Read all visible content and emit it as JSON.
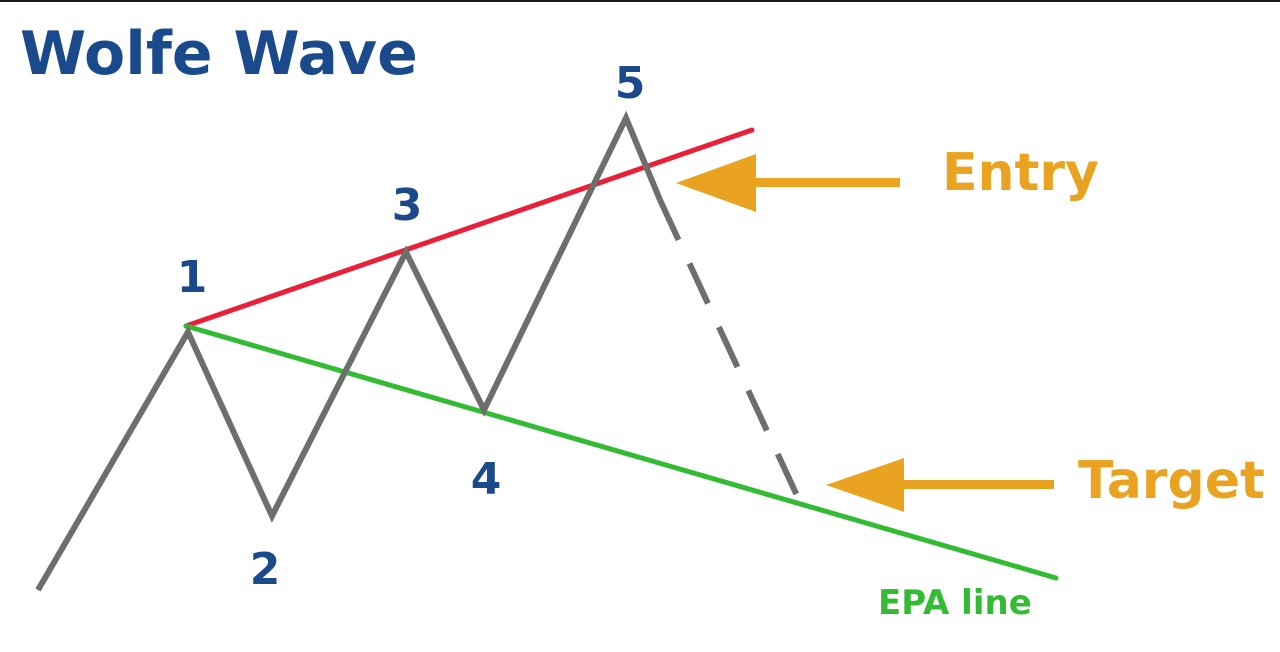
{
  "title": "Wolfe Wave",
  "points": [
    {
      "id": "1",
      "label": "1"
    },
    {
      "id": "2",
      "label": "2"
    },
    {
      "id": "3",
      "label": "3"
    },
    {
      "id": "4",
      "label": "4"
    },
    {
      "id": "5",
      "label": "5"
    }
  ],
  "callouts": {
    "entry": "Entry",
    "target": "Target"
  },
  "lines": {
    "epa_label": "EPA line"
  },
  "colors": {
    "title": "#1b4a8c",
    "point_labels": "#1b4a8c",
    "price_path": "#6b706c",
    "upper_line": "#e8203a",
    "epa_line": "#33bb33",
    "arrows": "#e9a320",
    "callout_text": "#e9a320"
  },
  "icons": {
    "entry_arrow": "arrow-left-icon",
    "target_arrow": "arrow-left-icon"
  }
}
